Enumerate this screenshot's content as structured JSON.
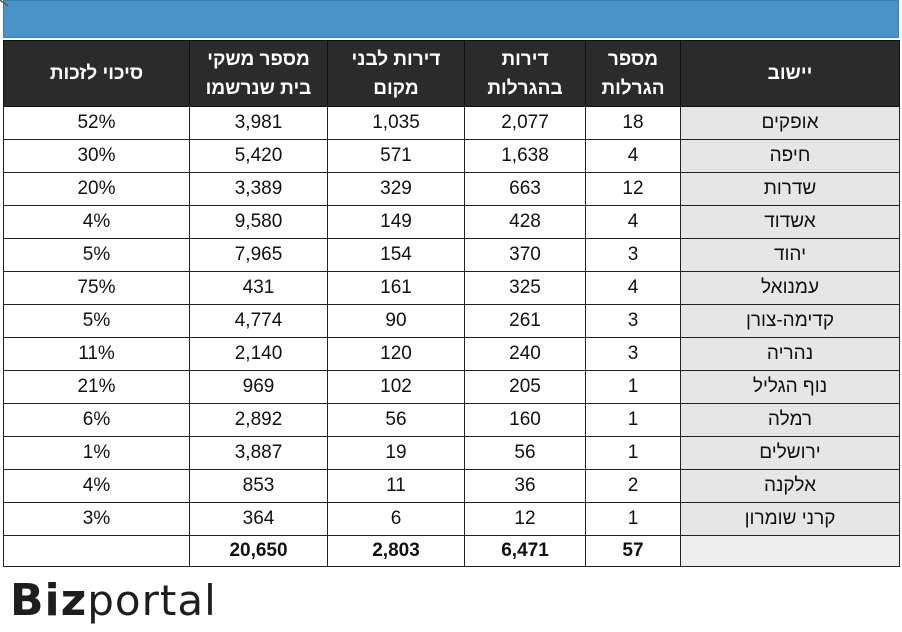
{
  "headers": {
    "city": "יישוב",
    "lotteries": "מספר\nהגרלות",
    "apartments": "דירות\nבהגרלות",
    "local_apartments": "דירות לבני\nמקום",
    "registered": "מספר משקי\nבית  שנרשמו",
    "chance": "סיכוי לזכות"
  },
  "rows": [
    {
      "city": "אופקים",
      "lotteries": "18",
      "apartments": "2,077",
      "local": "1,035",
      "registered": "3,981",
      "chance": "52%"
    },
    {
      "city": "חיפה",
      "lotteries": "4",
      "apartments": "1,638",
      "local": "571",
      "registered": "5,420",
      "chance": "30%"
    },
    {
      "city": "שדרות",
      "lotteries": "12",
      "apartments": "663",
      "local": "329",
      "registered": "3,389",
      "chance": "20%"
    },
    {
      "city": "אשדוד",
      "lotteries": "4",
      "apartments": "428",
      "local": "149",
      "registered": "9,580",
      "chance": "4%"
    },
    {
      "city": "יהוד",
      "lotteries": "3",
      "apartments": "370",
      "local": "154",
      "registered": "7,965",
      "chance": "5%"
    },
    {
      "city": "עמנואל",
      "lotteries": "4",
      "apartments": "325",
      "local": "161",
      "registered": "431",
      "chance": "75%"
    },
    {
      "city": "קדימה-צורן",
      "lotteries": "3",
      "apartments": "261",
      "local": "90",
      "registered": "4,774",
      "chance": "5%"
    },
    {
      "city": "נהריה",
      "lotteries": "3",
      "apartments": "240",
      "local": "120",
      "registered": "2,140",
      "chance": "11%"
    },
    {
      "city": "נוף הגליל",
      "lotteries": "1",
      "apartments": "205",
      "local": "102",
      "registered": "969",
      "chance": "21%"
    },
    {
      "city": "רמלה",
      "lotteries": "1",
      "apartments": "160",
      "local": "56",
      "registered": "2,892",
      "chance": "6%"
    },
    {
      "city": "ירושלים",
      "lotteries": "1",
      "apartments": "56",
      "local": "19",
      "registered": "3,887",
      "chance": "1%"
    },
    {
      "city": "אלקנה",
      "lotteries": "2",
      "apartments": "36",
      "local": "11",
      "registered": "853",
      "chance": "4%"
    },
    {
      "city": "קרני שומרון",
      "lotteries": "1",
      "apartments": "12",
      "local": "6",
      "registered": "364",
      "chance": "3%"
    }
  ],
  "totals": {
    "city": "",
    "lotteries": "57",
    "apartments": "6,471",
    "local": "2,803",
    "registered": "20,650",
    "chance": ""
  },
  "logo": {
    "bold": "Biz",
    "light": "portal"
  },
  "colors": {
    "topbar": "#4a93c8",
    "header_bg": "#2b2b2b",
    "city_bg": "#e6e6e6"
  }
}
